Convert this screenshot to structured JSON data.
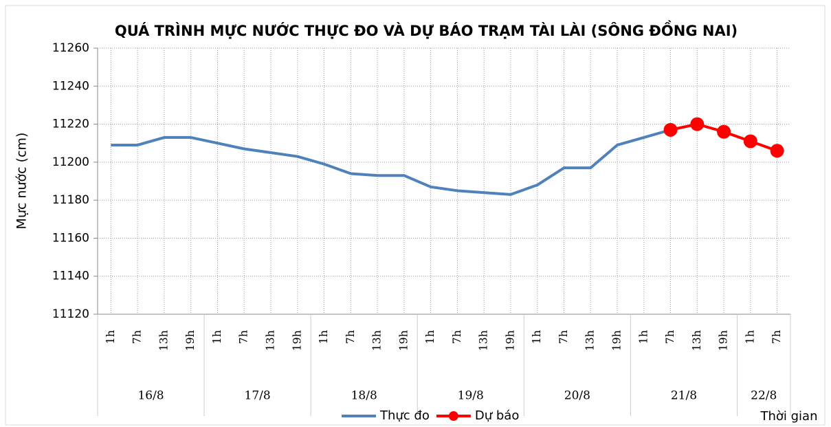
{
  "chart_data": {
    "type": "line",
    "title": "QUÁ TRÌNH MỰC NƯỚC THỰC ĐO VÀ DỰ BÁO TRẠM TÀI LÀI (SÔNG ĐỒNG NAI)",
    "y_label": "Mực nước (cm)",
    "x_label": "Thời gian",
    "categories": [
      "1h",
      "7h",
      "13h",
      "19h",
      "1h",
      "7h",
      "13h",
      "19h",
      "1h",
      "7h",
      "13h",
      "19h",
      "1h",
      "7h",
      "13h",
      "19h",
      "1h",
      "7h",
      "13h",
      "19h",
      "1h",
      "7h",
      "13h",
      "19h",
      "1h",
      "7h"
    ],
    "day_labels": [
      "16/8",
      null,
      null,
      null,
      "17/8",
      null,
      null,
      null,
      "18/8",
      null,
      null,
      null,
      "19/8",
      null,
      null,
      null,
      "20/8",
      null,
      null,
      null,
      "21/8",
      null,
      null,
      null,
      "22/8",
      null
    ],
    "series": [
      {
        "name": "Thực đo",
        "color": "#4f81bd",
        "marker": false,
        "values": [
          11209,
          11209,
          11213,
          11213,
          11210,
          11207,
          11205,
          11203,
          11199,
          11194,
          11193,
          11193,
          11187,
          11185,
          11184,
          11183,
          11188,
          11197,
          11197,
          11209,
          11213,
          11217,
          null,
          null,
          null,
          null
        ]
      },
      {
        "name": "Dự báo",
        "color": "#ff0000",
        "marker": true,
        "values": [
          null,
          null,
          null,
          null,
          null,
          null,
          null,
          null,
          null,
          null,
          null,
          null,
          null,
          null,
          null,
          null,
          null,
          null,
          null,
          null,
          null,
          11217,
          11220,
          11216,
          11211,
          11206
        ]
      }
    ],
    "ylim": [
      11120,
      11260
    ],
    "yticks": [
      11120,
      11140,
      11160,
      11180,
      11200,
      11220,
      11240,
      11260
    ],
    "grid": true
  }
}
